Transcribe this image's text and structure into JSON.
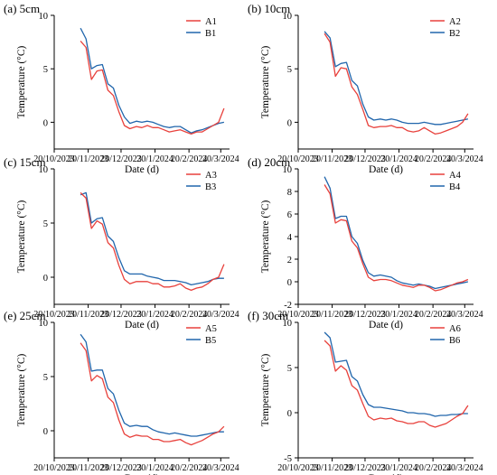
{
  "colors": {
    "series_a": "#e8413c",
    "series_b": "#2166ac",
    "axis": "#000000"
  },
  "chart_data": [
    {
      "type": "line",
      "title": "(a) 5cm",
      "xlabel": "Date (d)",
      "ylabel": "Temperature (°C)",
      "x_ticks": [
        "20/10/2023",
        "20/11/2023",
        "20/12/2023",
        "20/1/2024",
        "20/2/2024",
        "20/3/2024"
      ],
      "y_ticks": [
        0,
        5,
        10
      ],
      "ylim": [
        -2.5,
        10
      ],
      "legend": "top-right",
      "x": [
        "2023-11-13",
        "2023-11-18",
        "2023-11-23",
        "2023-11-28",
        "2023-12-03",
        "2023-12-08",
        "2023-12-13",
        "2023-12-18",
        "2023-12-23",
        "2023-12-28",
        "2024-01-03",
        "2024-01-08",
        "2024-01-13",
        "2024-01-18",
        "2024-01-23",
        "2024-01-28",
        "2024-02-02",
        "2024-02-07",
        "2024-02-12",
        "2024-02-17",
        "2024-02-22",
        "2024-02-27",
        "2024-03-03",
        "2024-03-08",
        "2024-03-13",
        "2024-03-18",
        "2024-03-23"
      ],
      "series": [
        {
          "name": "A1",
          "values": [
            7.6,
            7.0,
            4.0,
            4.8,
            4.9,
            3.0,
            2.5,
            1.0,
            -0.3,
            -0.6,
            -0.4,
            -0.5,
            -0.3,
            -0.5,
            -0.5,
            -0.7,
            -0.9,
            -0.8,
            -0.7,
            -0.9,
            -1.1,
            -0.9,
            -0.9,
            -0.6,
            -0.3,
            0.0,
            1.3
          ]
        },
        {
          "name": "B1",
          "values": [
            8.8,
            7.8,
            5.0,
            5.3,
            5.4,
            3.6,
            3.2,
            1.6,
            0.5,
            -0.1,
            0.1,
            0.0,
            0.1,
            0.0,
            -0.2,
            -0.4,
            -0.5,
            -0.4,
            -0.4,
            -0.7,
            -1.0,
            -0.8,
            -0.7,
            -0.5,
            -0.3,
            -0.1,
            0.0
          ]
        }
      ]
    },
    {
      "type": "line",
      "title": "(b) 10cm",
      "xlabel": "Date (d)",
      "ylabel": "Temperature (°C)",
      "x_ticks": [
        "20/10/2023",
        "20/11/2023",
        "20/12/2023",
        "20/1/2024",
        "20/2/2024",
        "20/3/2024"
      ],
      "y_ticks": [
        0,
        5,
        10
      ],
      "ylim": [
        -2.5,
        10
      ],
      "legend": "top-right",
      "x": [
        "2023-11-13",
        "2023-11-18",
        "2023-11-23",
        "2023-11-28",
        "2023-12-03",
        "2023-12-08",
        "2023-12-13",
        "2023-12-18",
        "2023-12-23",
        "2023-12-28",
        "2024-01-03",
        "2024-01-08",
        "2024-01-13",
        "2024-01-18",
        "2024-01-23",
        "2024-01-28",
        "2024-02-02",
        "2024-02-07",
        "2024-02-12",
        "2024-02-17",
        "2024-02-22",
        "2024-02-27",
        "2024-03-03",
        "2024-03-08",
        "2024-03-13",
        "2024-03-18",
        "2024-03-23"
      ],
      "series": [
        {
          "name": "A2",
          "values": [
            8.3,
            7.5,
            4.3,
            5.1,
            5.0,
            3.3,
            2.6,
            1.2,
            -0.3,
            -0.5,
            -0.4,
            -0.4,
            -0.3,
            -0.5,
            -0.5,
            -0.8,
            -0.9,
            -0.8,
            -0.5,
            -0.8,
            -1.1,
            -1.0,
            -0.8,
            -0.6,
            -0.4,
            0.0,
            0.8
          ]
        },
        {
          "name": "B2",
          "values": [
            8.5,
            7.9,
            5.2,
            5.5,
            5.6,
            3.9,
            3.4,
            1.7,
            0.5,
            0.2,
            0.3,
            0.2,
            0.3,
            0.2,
            0.0,
            -0.1,
            -0.1,
            -0.1,
            0.0,
            -0.1,
            -0.2,
            -0.2,
            -0.1,
            0.0,
            0.1,
            0.2,
            0.3
          ]
        }
      ]
    },
    {
      "type": "line",
      "title": "(c) 15cm",
      "xlabel": "Date (d)",
      "ylabel": "Temperature (°C)",
      "x_ticks": [
        "20/10/2023",
        "20/11/2023",
        "20/12/2023",
        "20/1/2024",
        "20/2/2024",
        "20/3/2024"
      ],
      "y_ticks": [
        0,
        5,
        10
      ],
      "ylim": [
        -2.5,
        10
      ],
      "legend": "top-right",
      "x": [
        "2023-11-13",
        "2023-11-18",
        "2023-11-23",
        "2023-11-28",
        "2023-12-03",
        "2023-12-08",
        "2023-12-13",
        "2023-12-18",
        "2023-12-23",
        "2023-12-28",
        "2024-01-03",
        "2024-01-08",
        "2024-01-13",
        "2024-01-18",
        "2024-01-23",
        "2024-01-28",
        "2024-02-02",
        "2024-02-07",
        "2024-02-12",
        "2024-02-17",
        "2024-02-22",
        "2024-02-27",
        "2024-03-03",
        "2024-03-08",
        "2024-03-13",
        "2024-03-18",
        "2024-03-23"
      ],
      "series": [
        {
          "name": "A3",
          "values": [
            7.8,
            7.3,
            4.5,
            5.2,
            4.9,
            3.2,
            2.7,
            1.1,
            -0.2,
            -0.6,
            -0.4,
            -0.4,
            -0.4,
            -0.6,
            -0.6,
            -0.9,
            -0.9,
            -0.8,
            -0.6,
            -1.0,
            -1.2,
            -1.0,
            -0.9,
            -0.6,
            -0.2,
            0.0,
            1.2
          ]
        },
        {
          "name": "B3",
          "values": [
            7.6,
            7.8,
            5.0,
            5.4,
            5.5,
            3.8,
            3.3,
            1.8,
            0.6,
            0.3,
            0.3,
            0.3,
            0.1,
            0.0,
            -0.1,
            -0.3,
            -0.3,
            -0.3,
            -0.4,
            -0.5,
            -0.7,
            -0.6,
            -0.5,
            -0.4,
            -0.2,
            -0.1,
            -0.1
          ]
        }
      ]
    },
    {
      "type": "line",
      "title": "(d) 20cm",
      "xlabel": "Date (d)",
      "ylabel": "Temperature (°C)",
      "x_ticks": [
        "20/10/2023",
        "20/11/2023",
        "20/12/2023",
        "20/1/2024",
        "20/2/2024",
        "20/3/2024"
      ],
      "y_ticks": [
        -2,
        0,
        2,
        4,
        6,
        8,
        10
      ],
      "ylim": [
        -2,
        10
      ],
      "legend": "top-right",
      "x": [
        "2023-11-13",
        "2023-11-18",
        "2023-11-23",
        "2023-11-28",
        "2023-12-03",
        "2023-12-08",
        "2023-12-13",
        "2023-12-18",
        "2023-12-23",
        "2023-12-28",
        "2024-01-03",
        "2024-01-08",
        "2024-01-13",
        "2024-01-18",
        "2024-01-23",
        "2024-01-28",
        "2024-02-02",
        "2024-02-07",
        "2024-02-12",
        "2024-02-17",
        "2024-02-22",
        "2024-02-27",
        "2024-03-03",
        "2024-03-08",
        "2024-03-13",
        "2024-03-18",
        "2024-03-23"
      ],
      "series": [
        {
          "name": "A4",
          "values": [
            8.6,
            7.8,
            5.2,
            5.5,
            5.4,
            3.6,
            3.0,
            1.6,
            0.4,
            0.1,
            0.2,
            0.2,
            0.1,
            -0.1,
            -0.3,
            -0.4,
            -0.5,
            -0.3,
            -0.3,
            -0.5,
            -0.8,
            -0.7,
            -0.5,
            -0.3,
            -0.1,
            0.0,
            0.2
          ]
        },
        {
          "name": "B4",
          "values": [
            9.3,
            8.3,
            5.6,
            5.8,
            5.8,
            4.0,
            3.4,
            1.9,
            0.8,
            0.5,
            0.6,
            0.5,
            0.4,
            0.1,
            -0.1,
            -0.2,
            -0.3,
            -0.2,
            -0.3,
            -0.4,
            -0.6,
            -0.5,
            -0.4,
            -0.3,
            -0.2,
            -0.1,
            0.0
          ]
        }
      ]
    },
    {
      "type": "line",
      "title": "(e) 25cm",
      "xlabel": "Date (d)",
      "ylabel": "Temperature (°C)",
      "x_ticks": [
        "20/10/2023",
        "20/11/2023",
        "20/12/2023",
        "20/1/2024",
        "20/2/2024",
        "20/3/2024"
      ],
      "y_ticks": [
        0,
        5,
        10
      ],
      "ylim": [
        -2.5,
        10
      ],
      "legend": "top-right",
      "x": [
        "2023-11-13",
        "2023-11-18",
        "2023-11-23",
        "2023-11-28",
        "2023-12-03",
        "2023-12-08",
        "2023-12-13",
        "2023-12-18",
        "2023-12-23",
        "2023-12-28",
        "2024-01-03",
        "2024-01-08",
        "2024-01-13",
        "2024-01-18",
        "2024-01-23",
        "2024-01-28",
        "2024-02-02",
        "2024-02-07",
        "2024-02-12",
        "2024-02-17",
        "2024-02-22",
        "2024-02-27",
        "2024-03-03",
        "2024-03-08",
        "2024-03-13",
        "2024-03-18",
        "2024-03-23"
      ],
      "series": [
        {
          "name": "A5",
          "values": [
            8.1,
            7.4,
            4.6,
            5.1,
            4.8,
            3.1,
            2.6,
            1.0,
            -0.3,
            -0.6,
            -0.4,
            -0.5,
            -0.5,
            -0.8,
            -0.8,
            -1.0,
            -1.0,
            -0.9,
            -0.8,
            -1.1,
            -1.3,
            -1.1,
            -0.9,
            -0.6,
            -0.3,
            -0.1,
            0.4
          ]
        },
        {
          "name": "B5",
          "values": [
            8.9,
            8.2,
            5.5,
            5.6,
            5.6,
            3.9,
            3.4,
            1.9,
            0.7,
            0.4,
            0.5,
            0.4,
            0.4,
            0.1,
            -0.1,
            -0.2,
            -0.3,
            -0.2,
            -0.3,
            -0.4,
            -0.5,
            -0.5,
            -0.4,
            -0.3,
            -0.2,
            -0.1,
            -0.1
          ]
        }
      ]
    },
    {
      "type": "line",
      "title": "(f) 30cm",
      "xlabel": "Date (d)",
      "ylabel": "Temperature (°C)",
      "x_ticks": [
        "20/10/2023",
        "20/11/2023",
        "20/12/2023",
        "20/1/2024",
        "20/2/2024",
        "20/3/2024"
      ],
      "y_ticks": [
        -5,
        0,
        5,
        10
      ],
      "ylim": [
        -5,
        10
      ],
      "legend": "top-right",
      "x": [
        "2023-11-13",
        "2023-11-18",
        "2023-11-23",
        "2023-11-28",
        "2023-12-03",
        "2023-12-08",
        "2023-12-13",
        "2023-12-18",
        "2023-12-23",
        "2023-12-28",
        "2024-01-03",
        "2024-01-08",
        "2024-01-13",
        "2024-01-18",
        "2024-01-23",
        "2024-01-28",
        "2024-02-02",
        "2024-02-07",
        "2024-02-12",
        "2024-02-17",
        "2024-02-22",
        "2024-02-27",
        "2024-03-03",
        "2024-03-08",
        "2024-03-13",
        "2024-03-18",
        "2024-03-23"
      ],
      "series": [
        {
          "name": "A6",
          "values": [
            8.0,
            7.4,
            4.6,
            5.2,
            4.7,
            3.0,
            2.5,
            1.0,
            -0.4,
            -0.8,
            -0.6,
            -0.7,
            -0.6,
            -0.9,
            -1.0,
            -1.2,
            -1.2,
            -1.0,
            -1.0,
            -1.4,
            -1.6,
            -1.4,
            -1.2,
            -0.8,
            -0.4,
            -0.1,
            0.8
          ]
        },
        {
          "name": "B6",
          "values": [
            8.9,
            8.3,
            5.6,
            5.7,
            5.8,
            4.0,
            3.5,
            2.0,
            0.9,
            0.6,
            0.6,
            0.5,
            0.4,
            0.3,
            0.2,
            0.0,
            0.0,
            -0.1,
            -0.1,
            -0.2,
            -0.4,
            -0.3,
            -0.3,
            -0.2,
            -0.2,
            -0.1,
            -0.1
          ]
        }
      ]
    }
  ]
}
